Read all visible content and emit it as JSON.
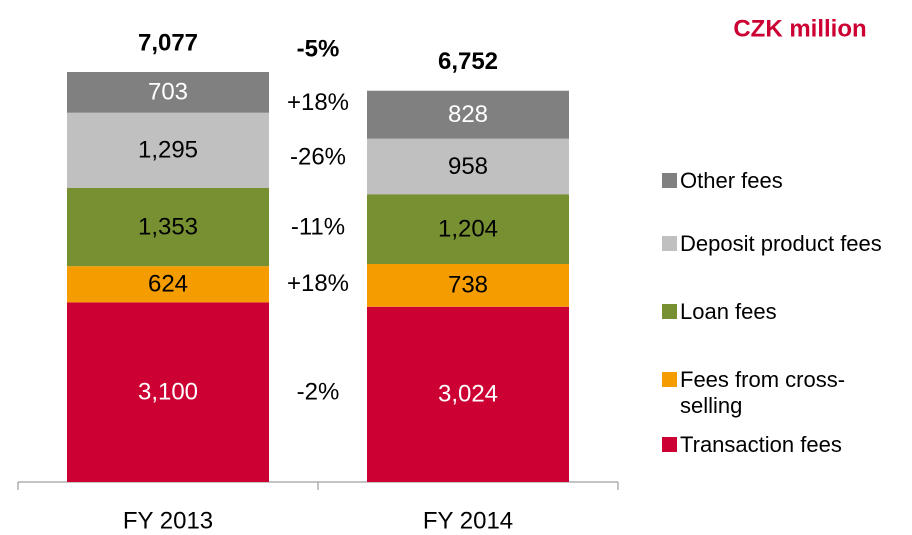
{
  "chart_data": {
    "type": "stacked_bar",
    "unit_label": "CZK million",
    "categories": [
      "FY 2013",
      "FY 2014"
    ],
    "totals": [
      7077,
      6752
    ],
    "total_labels": [
      "7,077",
      "6,752"
    ],
    "total_change": "-5%",
    "series": [
      {
        "name": "Transaction fees",
        "color": "#cc0033",
        "label_color": "#ffffff",
        "values": [
          3100,
          3024
        ],
        "value_labels": [
          "3,100",
          "3,024"
        ],
        "change": "-2%"
      },
      {
        "name": "Fees from cross-selling",
        "color": "#f59c00",
        "label_color": "#000000",
        "values": [
          624,
          738
        ],
        "value_labels": [
          "624",
          "738"
        ],
        "change": "+18%"
      },
      {
        "name": "Loan fees",
        "color": "#779132",
        "label_color": "#000000",
        "values": [
          1353,
          1204
        ],
        "value_labels": [
          "1,353",
          "1,204"
        ],
        "change": "-11%"
      },
      {
        "name": "Deposit product fees",
        "color": "#c0c0c0",
        "label_color": "#000000",
        "values": [
          1295,
          958
        ],
        "value_labels": [
          "1,295",
          "958"
        ],
        "change": "-26%"
      },
      {
        "name": "Other fees",
        "color": "#808080",
        "label_color": "#ffffff",
        "values": [
          703,
          828
        ],
        "value_labels": [
          "703",
          "828"
        ],
        "change": "+18%"
      }
    ]
  }
}
